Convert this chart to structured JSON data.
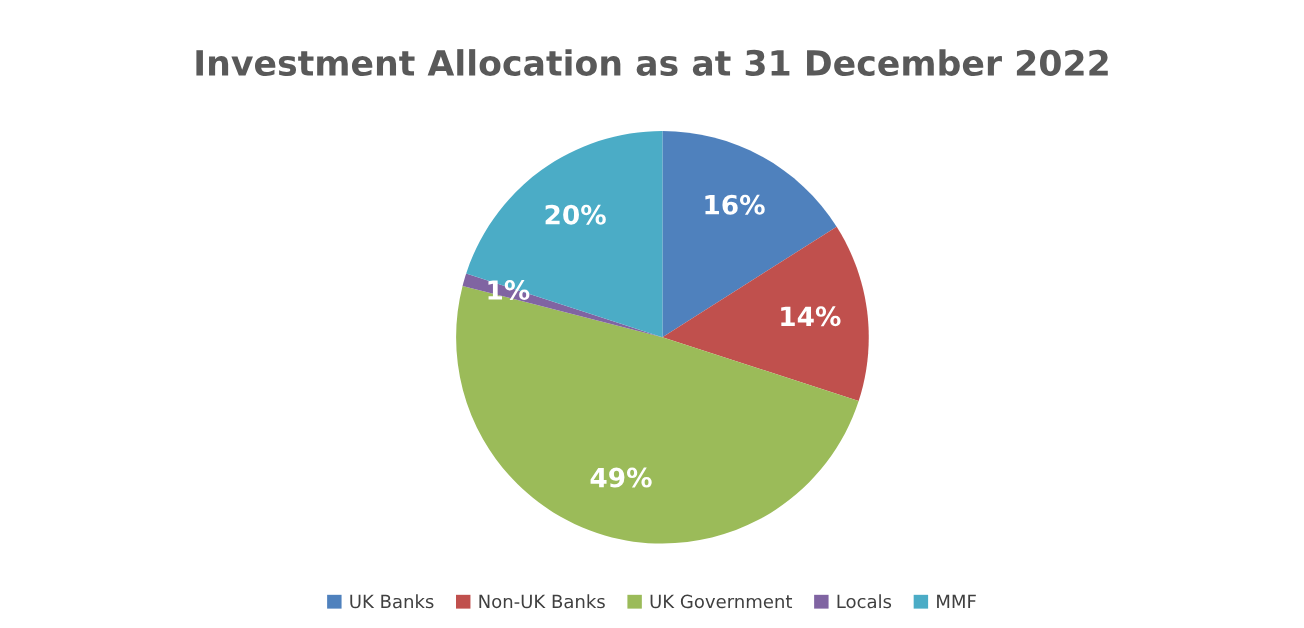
{
  "chart_data": {
    "type": "pie",
    "title": "Investment Allocation as at 31 December 2022",
    "categories": [
      "UK Banks",
      "Non-UK Banks",
      "UK Government",
      "Locals",
      "MMF"
    ],
    "values": [
      16,
      14,
      49,
      1,
      20
    ],
    "colors": [
      "#4f81bd",
      "#c0504d",
      "#9bbb59",
      "#8064a2",
      "#4bacc6"
    ],
    "value_labels": [
      "16%",
      "14%",
      "49%",
      "1%",
      "20%"
    ],
    "legend": "bottom"
  }
}
